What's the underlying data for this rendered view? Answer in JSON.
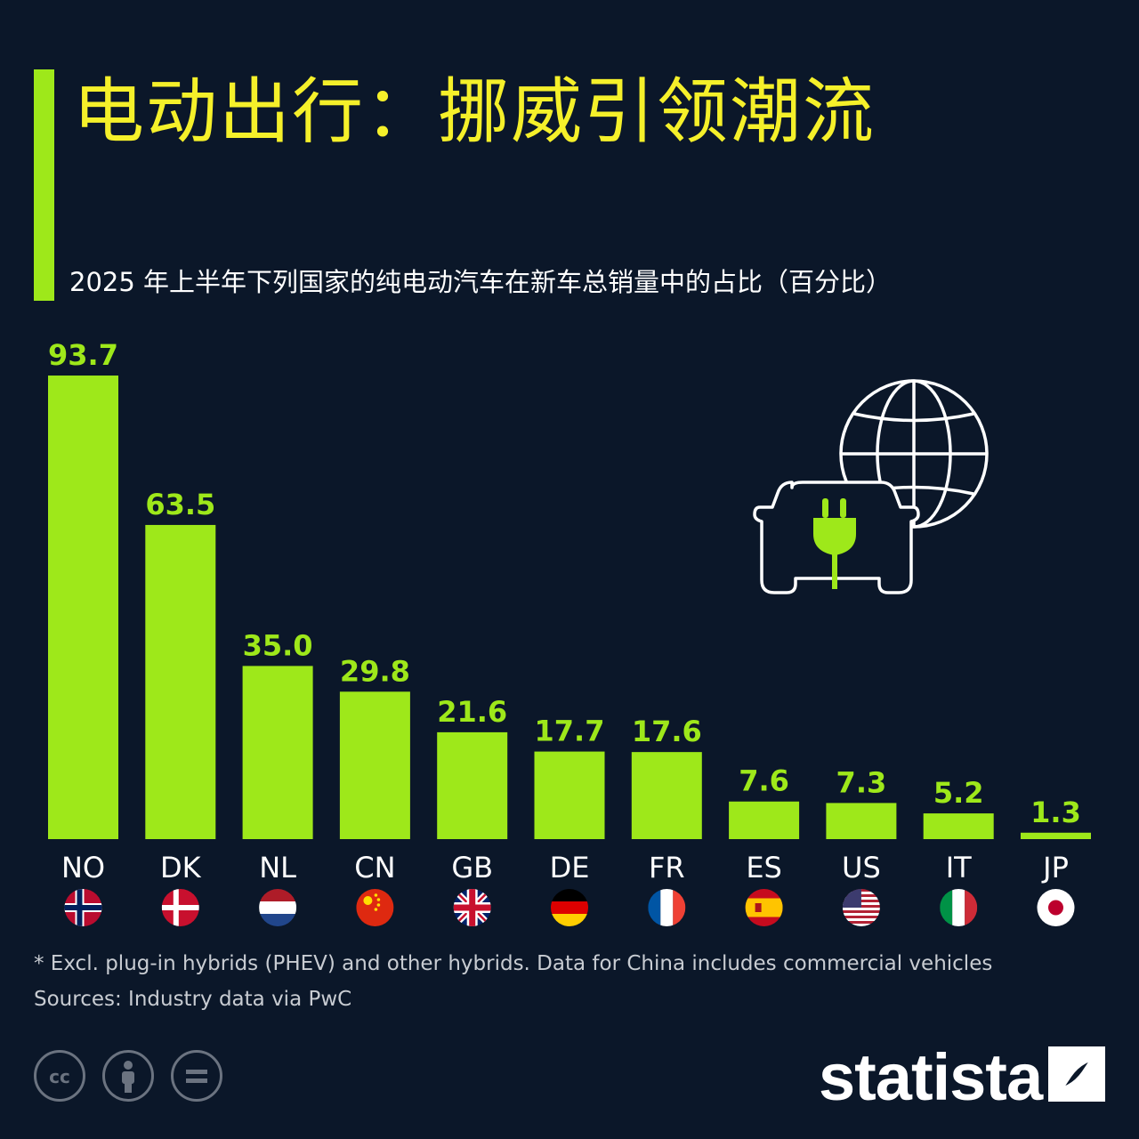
{
  "title": "电动出行：挪威引领潮流",
  "subtitle": "2025 年上半年下列国家的纯电动汽车在新车总销量中的占比（百分比）",
  "colors": {
    "background": "#0b1729",
    "bar": "#9ee81a",
    "title": "#f5f02a",
    "text": "#ffffff",
    "muted": "#c8ccd2"
  },
  "chart_data": {
    "type": "bar",
    "title": "电动出行：挪威引领潮流",
    "subtitle": "2025 年上半年下列国家的纯电动汽车在新车总销量中的占比（百分比）",
    "categories": [
      "NO",
      "DK",
      "NL",
      "CN",
      "GB",
      "DE",
      "FR",
      "ES",
      "US",
      "IT",
      "JP"
    ],
    "values": [
      93.7,
      63.5,
      35.0,
      29.8,
      21.6,
      17.7,
      17.6,
      7.6,
      7.3,
      5.2,
      1.3
    ],
    "value_labels": [
      "93.7",
      "63.5",
      "35.0",
      "29.8",
      "21.6",
      "17.7",
      "17.6",
      "7.6",
      "7.3",
      "5.2",
      "1.3"
    ],
    "xlabel": "",
    "ylabel": "",
    "ylim": [
      0,
      100
    ],
    "grid": false,
    "legend": "none",
    "flag_icons": [
      "norway-flag-icon",
      "denmark-flag-icon",
      "netherlands-flag-icon",
      "china-flag-icon",
      "uk-flag-icon",
      "germany-flag-icon",
      "france-flag-icon",
      "spain-flag-icon",
      "usa-flag-icon",
      "italy-flag-icon",
      "japan-flag-icon"
    ]
  },
  "illustration_icon": "electric-car-globe-icon",
  "footnote": "* Excl. plug-in hybrids (PHEV) and other hybrids. Data for China includes commercial vehicles",
  "source": "Sources: Industry data via PwC",
  "license_icons": [
    "cc-icon",
    "by-icon",
    "nd-icon"
  ],
  "brand": "statista"
}
